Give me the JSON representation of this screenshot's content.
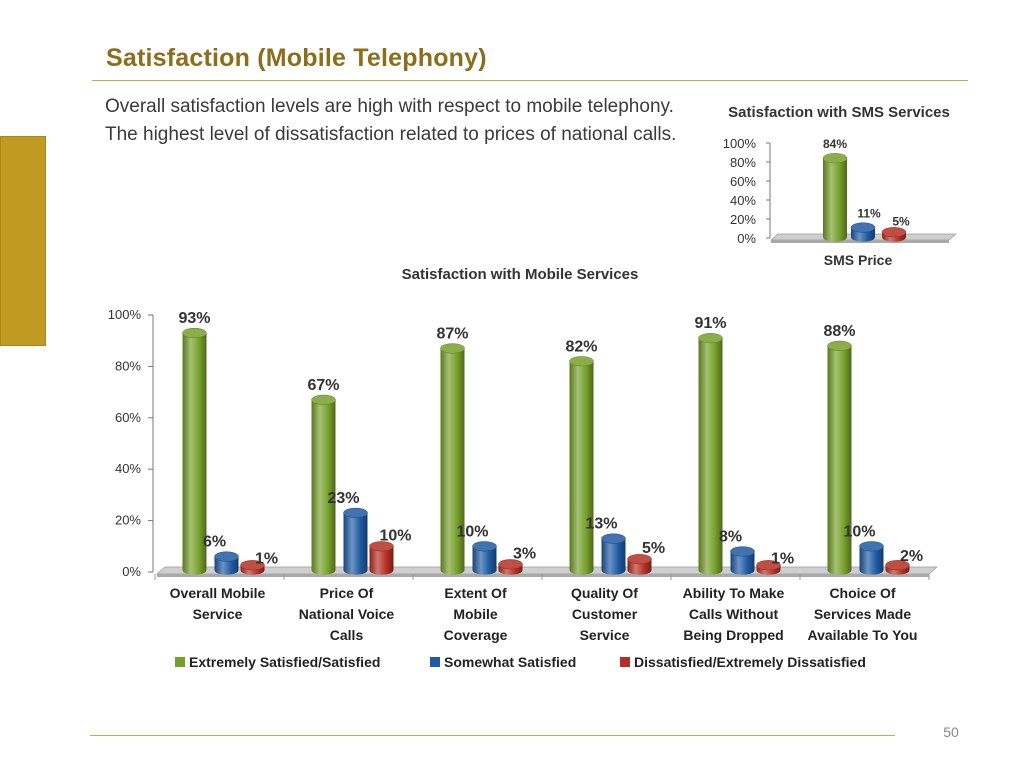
{
  "slide": {
    "title": "Satisfaction (Mobile Telephony)",
    "intro": "Overall satisfaction levels are high with respect to mobile telephony. The highest level of dissatisfaction related to prices of national calls.",
    "page_number": "50"
  },
  "colors": {
    "green": "#76a02a",
    "blue": "#1f5aa3",
    "red": "#b62f24",
    "title": "#8c6d1a",
    "accent": "#c09a22"
  },
  "chart_data": [
    {
      "type": "bar",
      "title": "Satisfaction with Mobile Services",
      "categories": [
        [
          "Overall Mobile",
          "Service"
        ],
        [
          "Price Of",
          "National Voice",
          "Calls"
        ],
        [
          "Extent Of",
          "Mobile",
          "Coverage"
        ],
        [
          "Quality Of",
          "Customer",
          "Service"
        ],
        [
          "Ability To Make",
          "Calls Without",
          "Being Dropped"
        ],
        [
          "Choice Of",
          "Services Made",
          "Available To You"
        ]
      ],
      "series": [
        {
          "name": "Extremely Satisfied/Satisfied",
          "color": "#76a02a",
          "values": [
            93,
            67,
            87,
            82,
            91,
            88
          ],
          "labels": [
            "93%",
            "67%",
            "87%",
            "82%",
            "91%",
            "88%"
          ]
        },
        {
          "name": "Somewhat Satisfied",
          "color": "#1f5aa3",
          "values": [
            6,
            23,
            10,
            13,
            8,
            10
          ],
          "labels": [
            "6%",
            "23%",
            "10%",
            "13%",
            "8%",
            "10%"
          ]
        },
        {
          "name": "Dissatisfied/Extremely Dissatisfied",
          "color": "#b62f24",
          "values": [
            1,
            10,
            3,
            5,
            1,
            2
          ],
          "labels": [
            "1%",
            "10%",
            "3%",
            "5%",
            "1%",
            "2%"
          ]
        }
      ],
      "yticks": [
        "0%",
        "20%",
        "40%",
        "60%",
        "80%",
        "100%"
      ],
      "ylim": [
        0,
        100
      ],
      "legend": "bottom"
    },
    {
      "type": "bar",
      "title": "Satisfaction with SMS Services",
      "categories": [
        [
          "SMS Price"
        ]
      ],
      "series": [
        {
          "name": "Extremely Satisfied/Satisfied",
          "color": "#76a02a",
          "values": [
            84
          ],
          "labels": [
            "84%"
          ]
        },
        {
          "name": "Somewhat Satisfied",
          "color": "#1f5aa3",
          "values": [
            11
          ],
          "labels": [
            "11%"
          ]
        },
        {
          "name": "Dissatisfied/Extremely Dissatisfied",
          "color": "#b62f24",
          "values": [
            5
          ],
          "labels": [
            "5%"
          ]
        }
      ],
      "yticks": [
        "0%",
        "20%",
        "40%",
        "60%",
        "80%",
        "100%"
      ],
      "ylim": [
        0,
        100
      ]
    }
  ]
}
